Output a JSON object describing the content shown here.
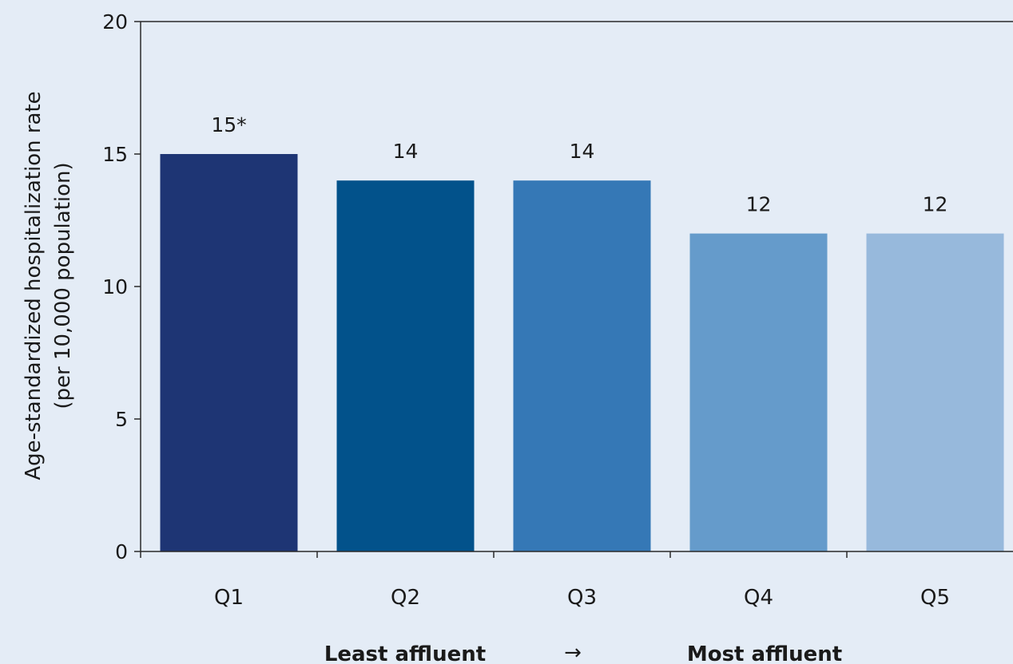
{
  "chart_data": {
    "type": "bar",
    "categories": [
      "Q1",
      "Q2",
      "Q3",
      "Q4",
      "Q5"
    ],
    "values": [
      15,
      14,
      14,
      12,
      12
    ],
    "data_labels": [
      "15*",
      "14",
      "14",
      "12",
      "12"
    ],
    "bar_colors": [
      "#1e3574",
      "#02528b",
      "#3578b6",
      "#659bcb",
      "#97b9dc"
    ],
    "ylabel_line1": "Age-standardized hospitalization rate",
    "ylabel_line2": "(per 10,000 population)",
    "ylim": [
      0,
      20
    ],
    "yticks": [
      0,
      5,
      10,
      15,
      20
    ],
    "annotation_left": "Least affluent",
    "annotation_arrow": "→",
    "annotation_right": "Most affluent",
    "grid": false
  }
}
